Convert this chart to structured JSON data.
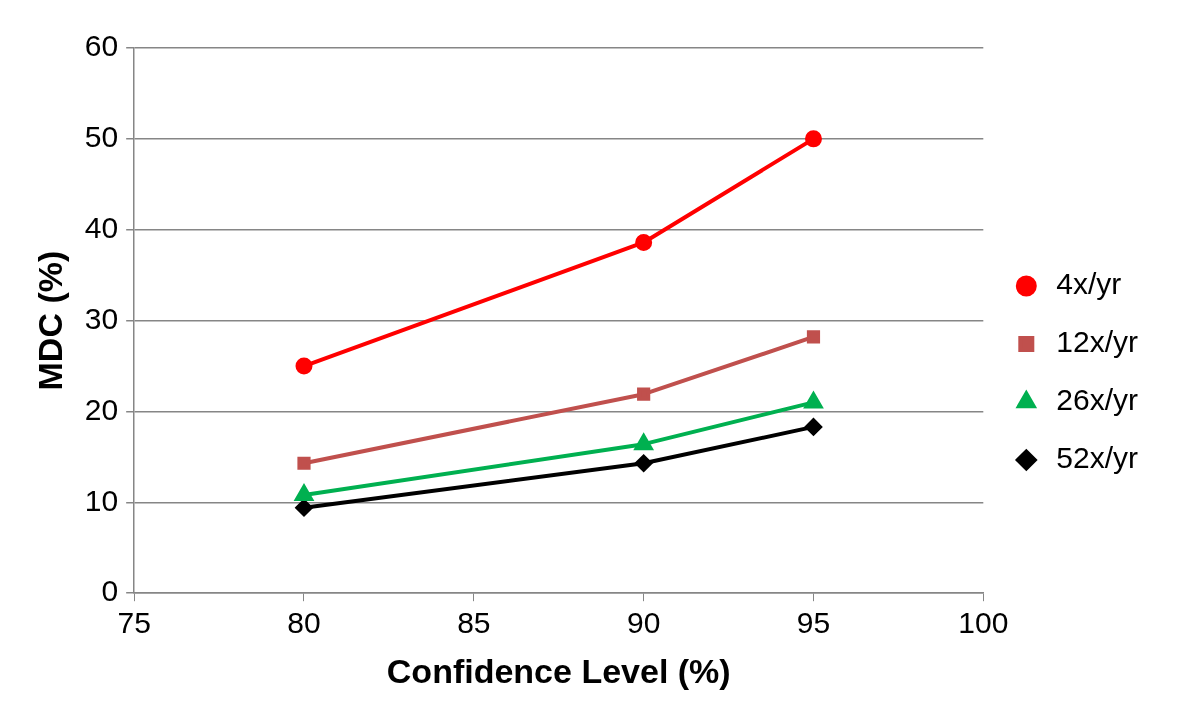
{
  "chart_data": {
    "type": "line",
    "xlabel": "Confidence Level (%)",
    "ylabel": "MDC (%)",
    "x": [
      80,
      90,
      95
    ],
    "xlim": [
      75,
      100
    ],
    "xticks": [
      75,
      80,
      85,
      90,
      95,
      100
    ],
    "ylim": [
      0,
      60
    ],
    "yticks": [
      0,
      10,
      20,
      30,
      40,
      50,
      60
    ],
    "grid": "y",
    "legend": "right",
    "series": [
      {
        "name": "4x/yr",
        "color": "#ff0000",
        "marker": "circle",
        "values": [
          25,
          38.6,
          50
        ]
      },
      {
        "name": "12x/yr",
        "color": "#c0504d",
        "marker": "square",
        "values": [
          14.3,
          21.9,
          28.2
        ]
      },
      {
        "name": "26x/yr",
        "color": "#00b050",
        "marker": "triangle",
        "values": [
          10.8,
          16.4,
          21
        ]
      },
      {
        "name": "52x/yr",
        "color": "#000000",
        "marker": "diamond",
        "values": [
          9.4,
          14.3,
          18.3
        ]
      }
    ]
  }
}
